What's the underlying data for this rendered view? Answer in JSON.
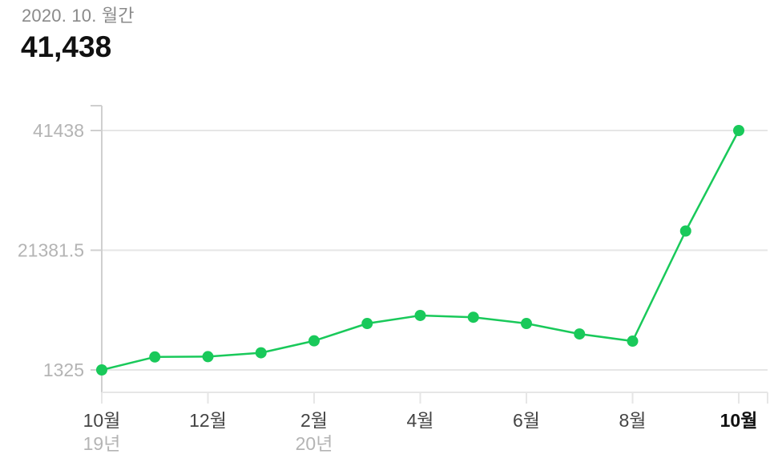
{
  "header": {
    "period": "2020. 10. 월간",
    "total": "41,438"
  },
  "colors": {
    "line": "#19c95a",
    "grid": "#e6e6e6",
    "axis": "#cfcfcf"
  },
  "chart_data": {
    "type": "line",
    "title": "",
    "xlabel": "",
    "ylabel": "",
    "grid": true,
    "x": [
      "2019-10",
      "2019-11",
      "2019-12",
      "2020-01",
      "2020-02",
      "2020-03",
      "2020-04",
      "2020-05",
      "2020-06",
      "2020-07",
      "2020-08",
      "2020-09",
      "2020-10"
    ],
    "series": [
      {
        "values": [
          1325,
          3500,
          3550,
          4200,
          6200,
          9100,
          10450,
          10150,
          9100,
          7350,
          6150,
          24600,
          41438
        ]
      }
    ],
    "ylim": [
      1325,
      41438
    ],
    "yticks": [
      {
        "value": 1325,
        "label": "1325"
      },
      {
        "value": 21381.5,
        "label": "21381.5"
      },
      {
        "value": 41438,
        "label": "41438"
      }
    ],
    "xticks": [
      {
        "index": 0,
        "label": "10월",
        "sublabel": "19년",
        "bold": false
      },
      {
        "index": 2,
        "label": "12월",
        "sublabel": "",
        "bold": false
      },
      {
        "index": 4,
        "label": "2월",
        "sublabel": "20년",
        "bold": false
      },
      {
        "index": 6,
        "label": "4월",
        "sublabel": "",
        "bold": false
      },
      {
        "index": 8,
        "label": "6월",
        "sublabel": "",
        "bold": false
      },
      {
        "index": 10,
        "label": "8월",
        "sublabel": "",
        "bold": false
      },
      {
        "index": 12,
        "label": "10월",
        "sublabel": "",
        "bold": true
      }
    ]
  }
}
